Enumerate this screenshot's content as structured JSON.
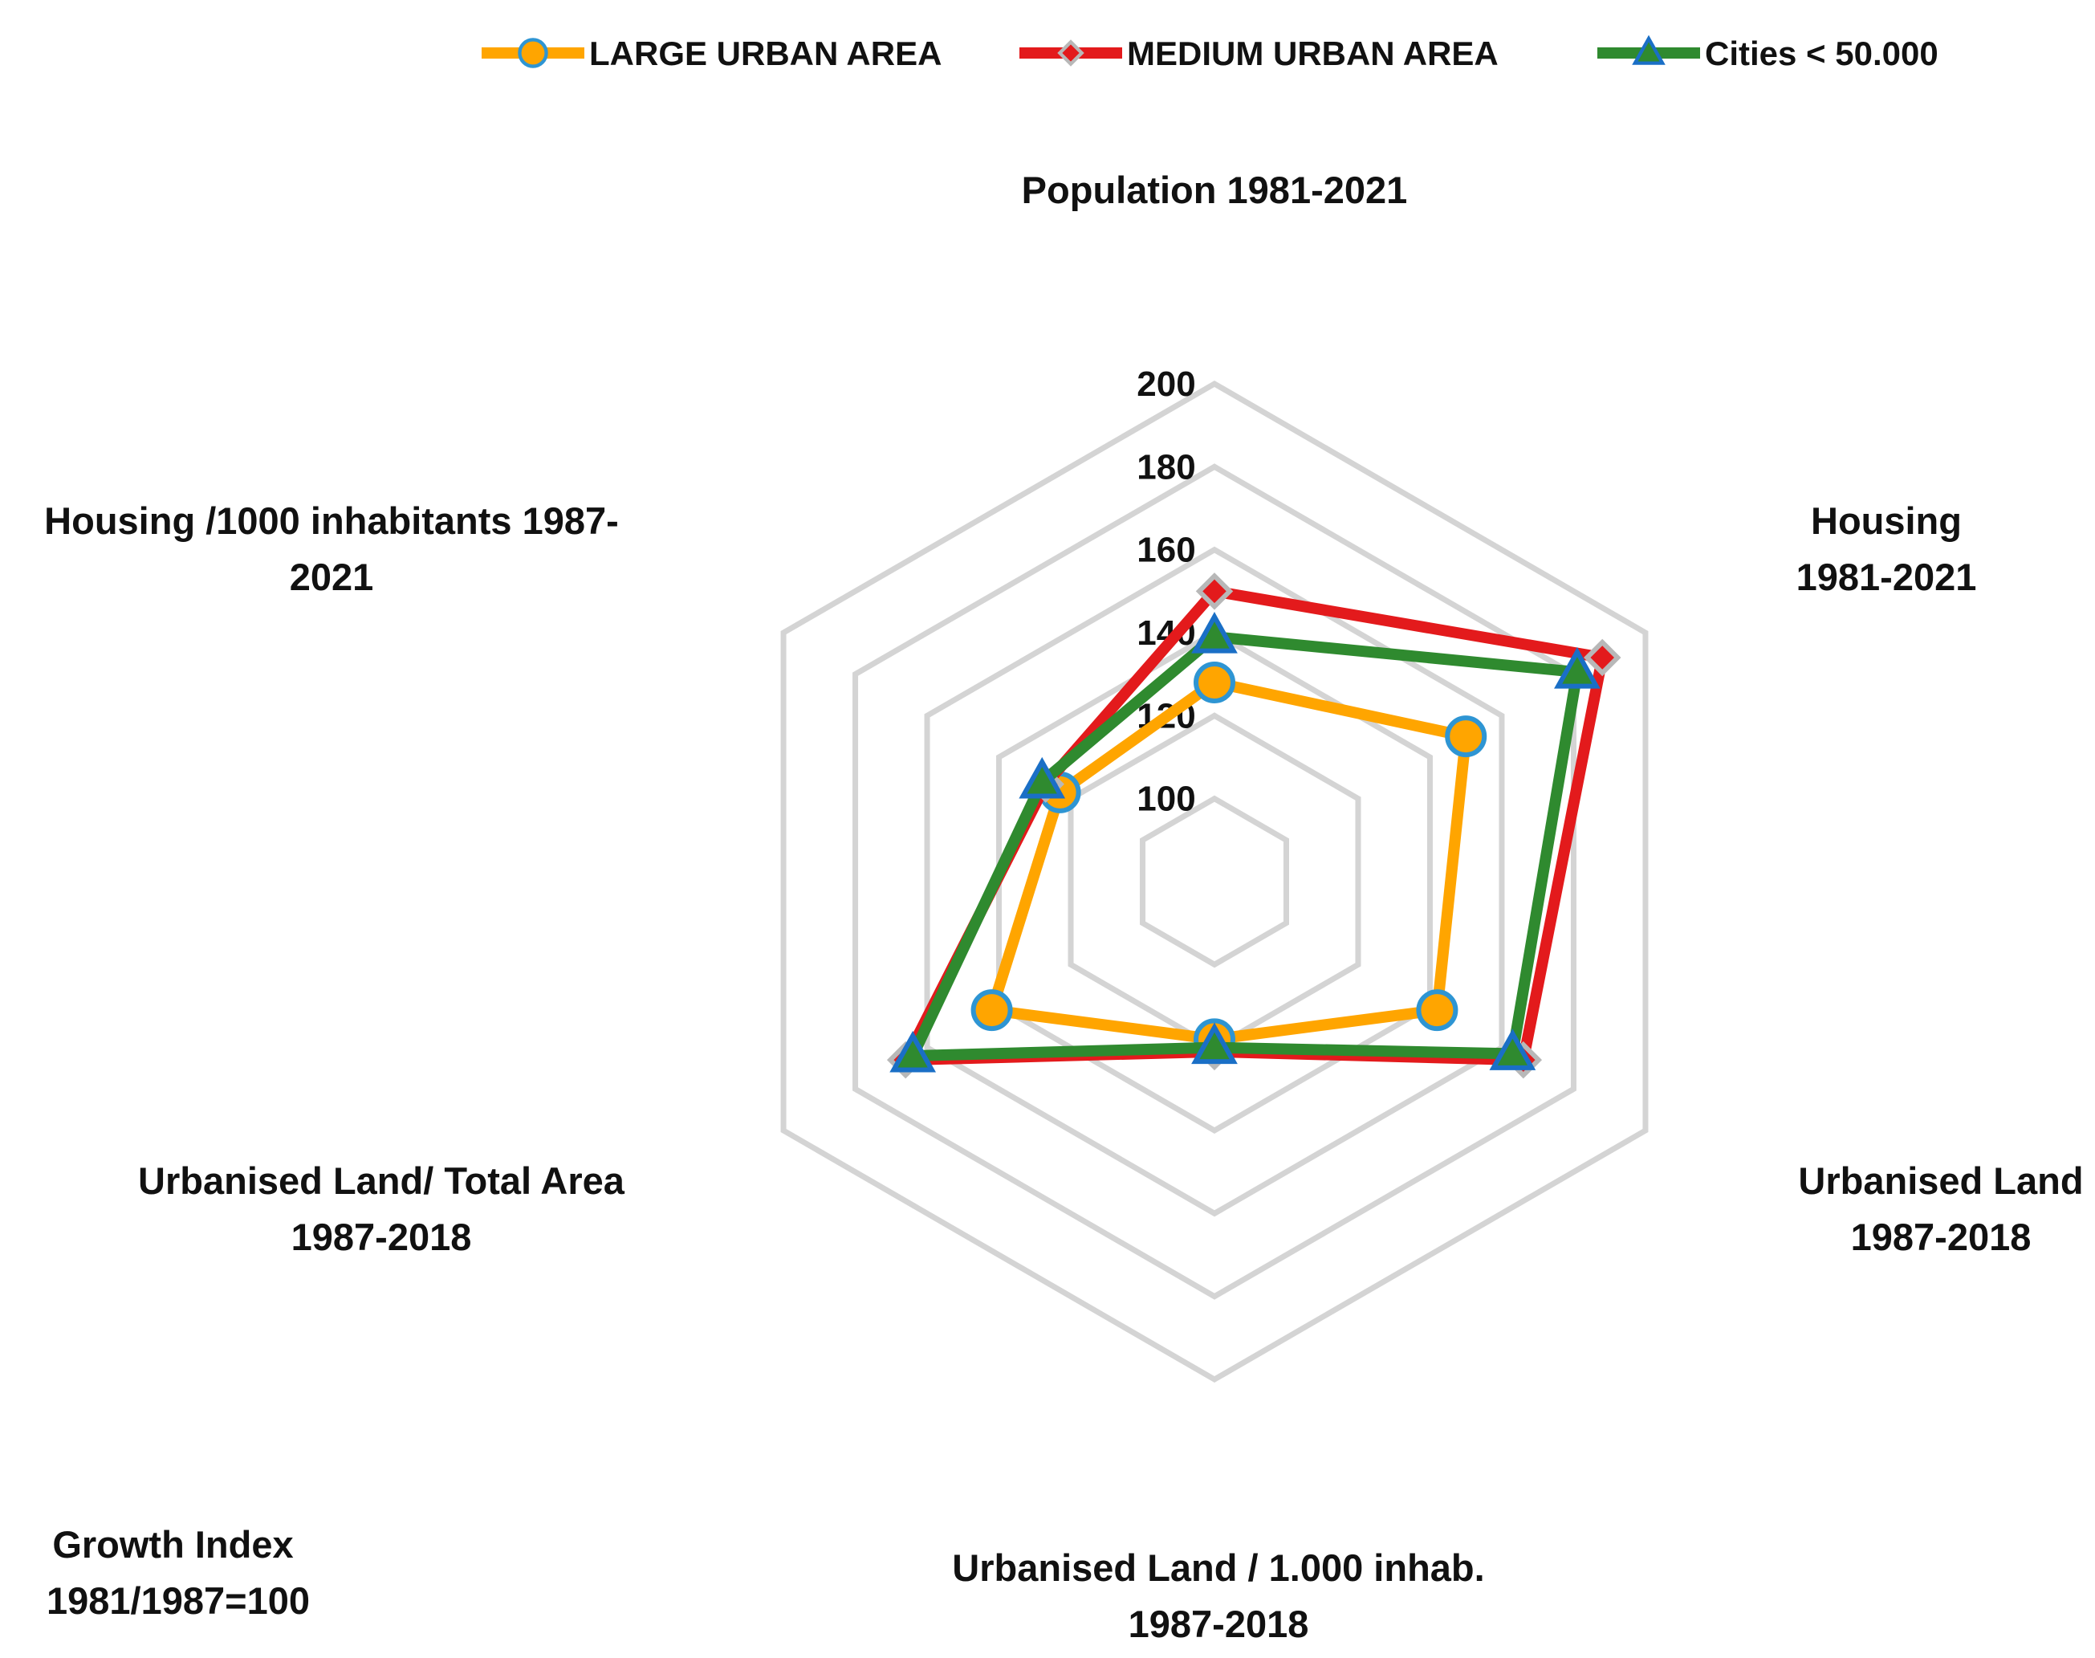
{
  "chart_data": {
    "type": "radar",
    "title": "",
    "note": [
      "Growth Index",
      "1981/1987=100"
    ],
    "axes": [
      [
        "Population 1981-2021"
      ],
      [
        "Housing",
        "1981-2021"
      ],
      [
        "Urbanised Land",
        "1987-2018"
      ],
      [
        "Urbanised Land / 1.000 inhab.",
        "1987-2018"
      ],
      [
        "Urbanised Land/ Total Area",
        "1987-2018"
      ],
      [
        "Housing /1000 inhabitants 1987-",
        "2021"
      ]
    ],
    "rlim": [
      80,
      200
    ],
    "ticks": [
      100,
      120,
      140,
      160,
      180,
      200
    ],
    "tick_labels": [
      "100",
      "120",
      "140",
      "160",
      "180",
      "200"
    ],
    "series": [
      {
        "name": "LARGE URBAN AREA",
        "color": "#ffa500",
        "marker": "circle",
        "marker_edge": "#2e95d3",
        "values": [
          128,
          150,
          142,
          118,
          142,
          123
        ]
      },
      {
        "name": "MEDIUM URBAN AREA",
        "color": "#e31a1c",
        "marker": "diamond",
        "marker_edge": "#b8b8b8",
        "values": [
          150,
          188,
          166,
          121,
          166,
          127
        ]
      },
      {
        "name": "Cities < 50.000",
        "color": "#2f8a2f",
        "marker": "triangle",
        "marker_edge": "#1a6fc6",
        "values": [
          139,
          181,
          163,
          120,
          164,
          128
        ]
      }
    ]
  }
}
